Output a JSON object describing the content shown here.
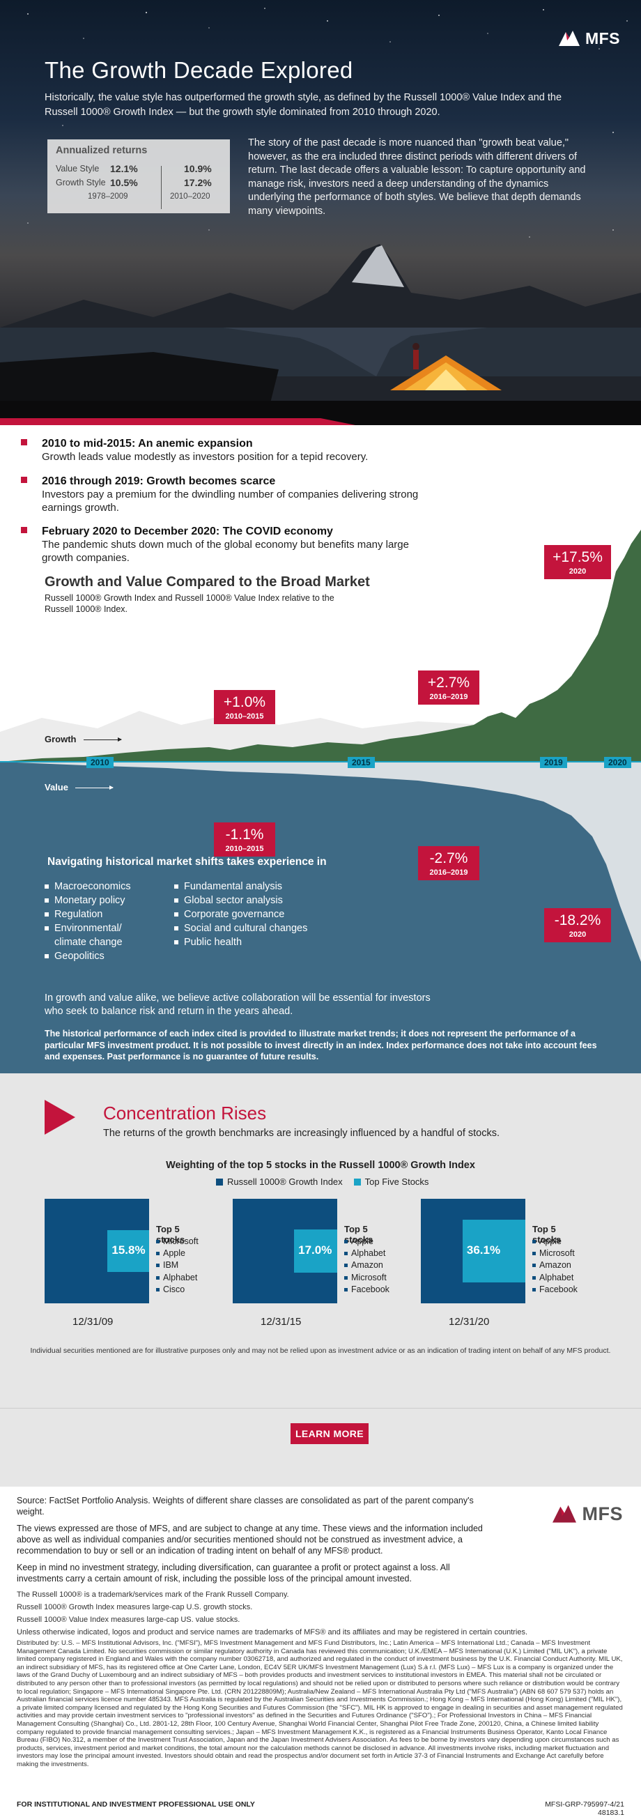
{
  "brand": {
    "name": "MFS",
    "accent": "#c3143c",
    "navy": "#0d4e7e",
    "cyan": "#1aa3c6",
    "slate": "#3e6a85",
    "green": "#3f6b43"
  },
  "hero": {
    "title": "The Growth Decade Explored",
    "intro": "Historically, the value style has outperformed the growth style, as defined by the Russell 1000® Value Index and the Russell 1000® Growth Index — but the growth style dominated from 2010 through 2020.",
    "story": "The story of the past decade is more nuanced than \"growth beat value,\" however, as the era included three distinct periods with different drivers of return. The last decade offers a valuable lesson: To capture opportunity and manage risk, investors need a deep understanding of the dynamics underlying the performance of both styles. We believe that depth demands many viewpoints."
  },
  "returns_box": {
    "title": "Annualized returns",
    "rows": [
      {
        "label": "Value Style",
        "v1": "12.1%",
        "v2": "10.9%"
      },
      {
        "label": "Growth Style",
        "v1": "10.5%",
        "v2": "17.2%"
      }
    ],
    "years": [
      "1978–2009",
      "2010–2020"
    ]
  },
  "periods": [
    {
      "heading": "2010 to mid-2015: An anemic expansion",
      "body": "Growth leads value modestly as investors position for a tepid recovery."
    },
    {
      "heading": "2016 through 2019: Growth becomes scarce",
      "body": "Investors pay a premium for the dwindling number of companies delivering strong earnings growth."
    },
    {
      "heading": "February 2020 to December 2020: The COVID economy",
      "body": "The pandemic shuts down much of the global economy but benefits many large growth companies."
    }
  ],
  "chart": {
    "title": "Growth and Value Compared to the Broad Market",
    "subtitle": "Russell 1000® Growth Index and Russell 1000® Value Index relative to the Russell 1000® Index.",
    "growth_label": "Growth",
    "value_label": "Value",
    "year_tags": [
      "2010",
      "2015",
      "2019",
      "2020"
    ],
    "callouts_growth": [
      {
        "value": "+1.0%",
        "period": "2010–2015"
      },
      {
        "value": "+2.7%",
        "period": "2016–2019"
      },
      {
        "value": "+17.5%",
        "period": "2020"
      }
    ],
    "callouts_value": [
      {
        "value": "-1.1%",
        "period": "2010–2015"
      },
      {
        "value": "-2.7%",
        "period": "2016–2019"
      },
      {
        "value": "-18.2%",
        "period": "2020"
      }
    ]
  },
  "chart_data": {
    "type": "area",
    "x": [
      "2010",
      "2015",
      "2019",
      "2020"
    ],
    "series": [
      {
        "name": "Growth",
        "values": [
          null,
          1.0,
          2.7,
          17.5
        ]
      },
      {
        "name": "Value",
        "values": [
          null,
          -1.1,
          -2.7,
          -18.2
        ]
      }
    ]
  },
  "navigating": {
    "heading": "Navigating historical market shifts takes experience in",
    "col1": [
      "Macroeconomics",
      "Monetary policy",
      "Regulation",
      "Environmental/ climate change",
      "Geopolitics"
    ],
    "col2": [
      "Fundamental analysis",
      "Global sector analysis",
      "Corporate governance",
      "Social and cultural changes",
      "Public health"
    ],
    "closing": "In growth and value alike, we believe active collaboration will be essential for investors who seek to balance risk and return in the years ahead.",
    "disclaimer": "The historical performance of each index cited is provided to illustrate market trends; it does not represent the performance of a particular MFS investment product. It is not possible to invest directly in an index. Index performance does not take into account fees and expenses. Past performance is no guarantee of future results."
  },
  "concentration": {
    "title": "Concentration Rises",
    "subtitle": "The returns of the growth benchmarks are increasingly influenced by a handful of stocks.",
    "weight_title": "Weighting of the top 5 stocks in the Russell 1000® Growth Index",
    "legend": [
      "Russell 1000® Growth Index",
      "Top Five Stocks"
    ],
    "top5_label": "Top 5 stocks",
    "panels": [
      {
        "date": "12/31/09",
        "pct": "15.8%",
        "share": 0.158,
        "stocks": [
          "Microsoft",
          "Apple",
          "IBM",
          "Alphabet",
          "Cisco"
        ]
      },
      {
        "date": "12/31/15",
        "pct": "17.0%",
        "share": 0.17,
        "stocks": [
          "Apple",
          "Alphabet",
          "Amazon",
          "Microsoft",
          "Facebook"
        ]
      },
      {
        "date": "12/31/20",
        "pct": "36.1%",
        "share": 0.361,
        "stocks": [
          "Apple",
          "Microsoft",
          "Amazon",
          "Alphabet",
          "Facebook"
        ]
      }
    ],
    "note": "Individual securities mentioned are for illustrative purposes only and may not be relied upon as investment advice or as an indication of trading intent on behalf of any MFS product."
  },
  "cta": {
    "label": "LEARN MORE"
  },
  "footer": {
    "source": "Source: FactSet Portfolio Analysis. Weights of different share classes are consolidated as part of the parent company's weight.",
    "views": "The views expressed are those of MFS, and are subject to change at any time. These views and the information included above as well as individual companies and/or securities mentioned should not be construed as investment advice, a recommendation to buy or sell or an indication of trading intent on behalf of any MFS® product.",
    "risk": "Keep in mind no investment strategy, including diversification, can guarantee a profit or protect against a loss. All investments carry a certain amount of risk, including the possible loss of the principal amount invested.",
    "tm1": "The Russell 1000® is a trademark/services mark of the Frank Russell Company.",
    "tm2": "Russell 1000® Growth Index measures large-cap U.S. growth stocks.",
    "tm3": "Russell 1000® Value Index measures large-cap US. value stocks.",
    "tm4": "Unless otherwise indicated, logos and product and service names are trademarks of MFS® and its affiliates and may be registered in certain countries.",
    "distributed": "Distributed by: U.S. – MFS Institutional Advisors, Inc. (\"MFSI\"), MFS Investment Management and MFS Fund Distributors, Inc.; Latin America – MFS International Ltd.; Canada – MFS Investment Management Canada Limited. No securities commission or similar regulatory authority in Canada has reviewed this communication; U.K./EMEA – MFS International (U.K.) Limited (\"MIL UK\"), a private limited company registered in England and Wales with the company number 03062718, and authorized and regulated in the conduct of investment business by the U.K. Financial Conduct Authority. MIL UK, an indirect subsidiary of MFS, has its registered office at One Carter Lane, London, EC4V 5ER UK/MFS Investment Management (Lux) S.à r.l. (MFS Lux) – MFS Lux is a company is organized under the laws of the Grand Duchy of Luxembourg and an indirect subsidiary of MFS – both provides products and investment services to institutional investors in EMEA. This material shall not be circulated or distributed to any person other than to professional investors (as permitted by local regulations) and should not be relied upon or distributed to persons where such reliance or distribution would be contrary to local regulation; Singapore – MFS International Singapore Pte. Ltd. (CRN 201228809M); Australia/New Zealand – MFS International Australia Pty Ltd (\"MFS Australia\") (ABN 68 607 579 537) holds an Australian financial services licence number 485343. MFS Australia is regulated by the Australian Securities and Investments Commission.; Hong Kong – MFS International (Hong Kong) Limited (\"MIL HK\"), a private limited company licensed and regulated by the Hong Kong Securities and Futures Commission (the \"SFC\"). MIL HK is approved to engage in dealing in securities and asset management regulated activities and may provide certain investment services to \"professional investors\" as defined in the Securities and Futures Ordinance (\"SFO\").; For Professional Investors in China – MFS Financial Management Consulting (Shanghai) Co., Ltd. 2801-12, 28th Floor, 100 Century Avenue, Shanghai World Financial Center, Shanghai Pilot Free Trade Zone, 200120, China, a Chinese limited liability company regulated to provide financial management consulting services.; Japan – MFS Investment Management K.K., is registered as a Financial Instruments Business Operator, Kanto Local Finance Bureau (FIBO) No.312, a member of the Investment Trust Association, Japan and the Japan Investment Advisers Association. As fees to be borne by investors vary depending upon circumstances such as products, services, investment period and market conditions, the total amount nor the calculation methods cannot be disclosed in advance. All investments involve risks, including market fluctuation and investors may lose the principal amount invested. Investors should obtain and read the prospectus and/or document set forth in Article 37-3 of Financial Instruments and Exchange Act carefully before making the investments.",
    "institutional": "FOR INSTITUTIONAL AND INVESTMENT PROFESSIONAL USE ONLY",
    "code": "MFSI-GRP-795997-4/21",
    "code2": "48183.1"
  }
}
